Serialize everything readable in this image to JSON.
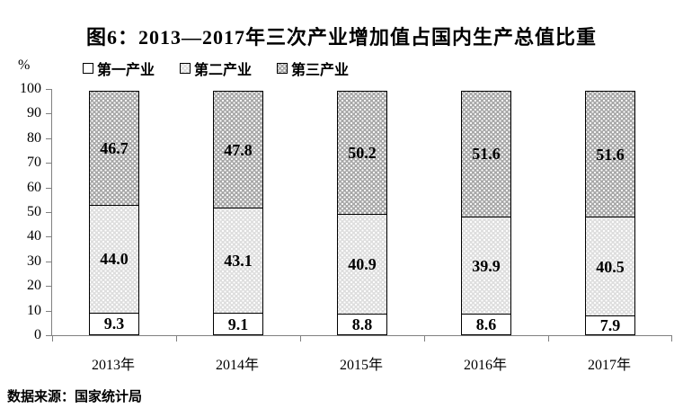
{
  "title": "图6：2013—2017年三次产业增加值占国内生产总值比重",
  "unit_label": "%",
  "legend": {
    "items": [
      {
        "label": "第一产业",
        "pattern": "primary"
      },
      {
        "label": "第二产业",
        "pattern": "secondary"
      },
      {
        "label": "第三产业",
        "pattern": "tertiary"
      }
    ]
  },
  "footer": {
    "source": "数据来源：国家统计局"
  },
  "chart_data": {
    "type": "bar",
    "stacked": true,
    "title": "图6：2013—2017年三次产业增加值占国内生产总值比重",
    "xlabel": "",
    "ylabel": "%",
    "ylim": [
      0,
      100
    ],
    "ytick_step": 10,
    "grid": false,
    "legend_position": "top",
    "categories": [
      "2013年",
      "2014年",
      "2015年",
      "2016年",
      "2017年"
    ],
    "series": [
      {
        "name": "第一产业",
        "pattern": "primary",
        "values": [
          9.3,
          9.1,
          8.8,
          8.6,
          7.9
        ],
        "labels": [
          "9.3",
          "9.1",
          "8.8",
          "8.6",
          "7.9"
        ]
      },
      {
        "name": "第二产业",
        "pattern": "secondary",
        "values": [
          44.0,
          43.1,
          40.9,
          39.9,
          40.5
        ],
        "labels": [
          "44.0",
          "43.1",
          "40.9",
          "39.9",
          "40.5"
        ]
      },
      {
        "name": "第三产业",
        "pattern": "tertiary",
        "values": [
          46.7,
          47.8,
          50.2,
          51.6,
          51.6
        ],
        "labels": [
          "46.7",
          "47.8",
          "50.2",
          "51.6",
          "51.6"
        ]
      }
    ]
  }
}
